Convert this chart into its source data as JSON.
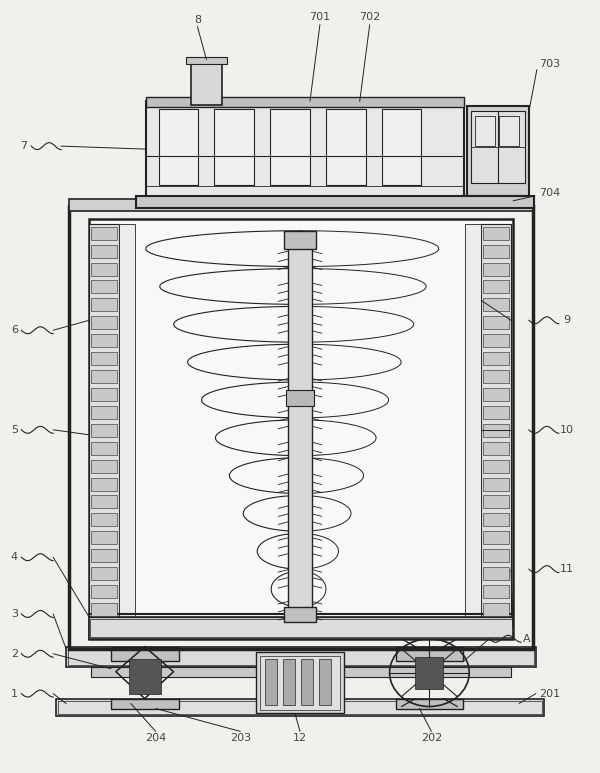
{
  "bg_color": "#f0f0ec",
  "line_color": "#666666",
  "dark_color": "#444444",
  "very_dark": "#222222",
  "fig_w": 6.0,
  "fig_h": 7.73
}
